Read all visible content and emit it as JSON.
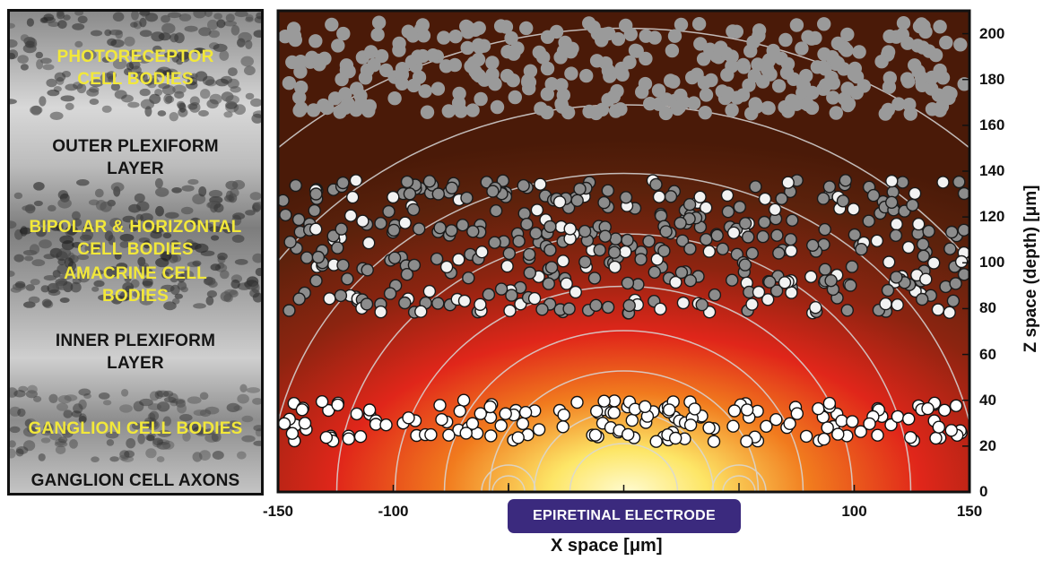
{
  "histology": {
    "layers": [
      {
        "label_lines": [
          "PHOTORECEPTOR",
          "CELL BODIES"
        ],
        "color": "#f2e83a"
      },
      {
        "label_lines": [
          "OUTER PLEXIFORM",
          "LAYER"
        ],
        "color": "#151515"
      },
      {
        "label_lines": [
          "BIPOLAR & HORIZONTAL",
          "CELL BODIES"
        ],
        "color": "#f2e83a"
      },
      {
        "label_lines": [
          "AMACRINE CELL",
          "BODIES"
        ],
        "color": "#f2e83a"
      },
      {
        "label_lines": [
          "INNER PLEXIFORM",
          "LAYER"
        ],
        "color": "#151515"
      },
      {
        "label_lines": [
          "GANGLION CELL BODIES"
        ],
        "color": "#f2e83a"
      },
      {
        "label_lines": [
          "GANGLION CELL AXONS"
        ],
        "color": "#151515"
      }
    ]
  },
  "plot": {
    "xlabel": "X space [μm]",
    "ylabel": "Z space (depth) [μm]",
    "x_range": [
      -150,
      150
    ],
    "z_range": [
      0,
      210
    ],
    "x_ticks": [
      "-150",
      "-100",
      "",
      "",
      "100",
      "150"
    ],
    "z_ticks": [
      "0",
      "20",
      "40",
      "60",
      "80",
      "100",
      "120",
      "140",
      "160",
      "180",
      "200"
    ],
    "electrode_label": "EPIRETINAL ELECTRODE",
    "electrode_sources_x": [
      -50,
      50
    ],
    "colors": {
      "field_hot": "#fffbd0",
      "field_mid": "#e0261a",
      "field_cool": "#4a1a08",
      "photoreceptor_cell": "#9a9a9a",
      "bipolar_cell": "#8c8c8c",
      "amacrine_cell": "#f2f2f2",
      "ganglion_cell": "#ffffff",
      "contour": "#d8d8d8",
      "electrode_badge": "#3b2a7e"
    }
  }
}
